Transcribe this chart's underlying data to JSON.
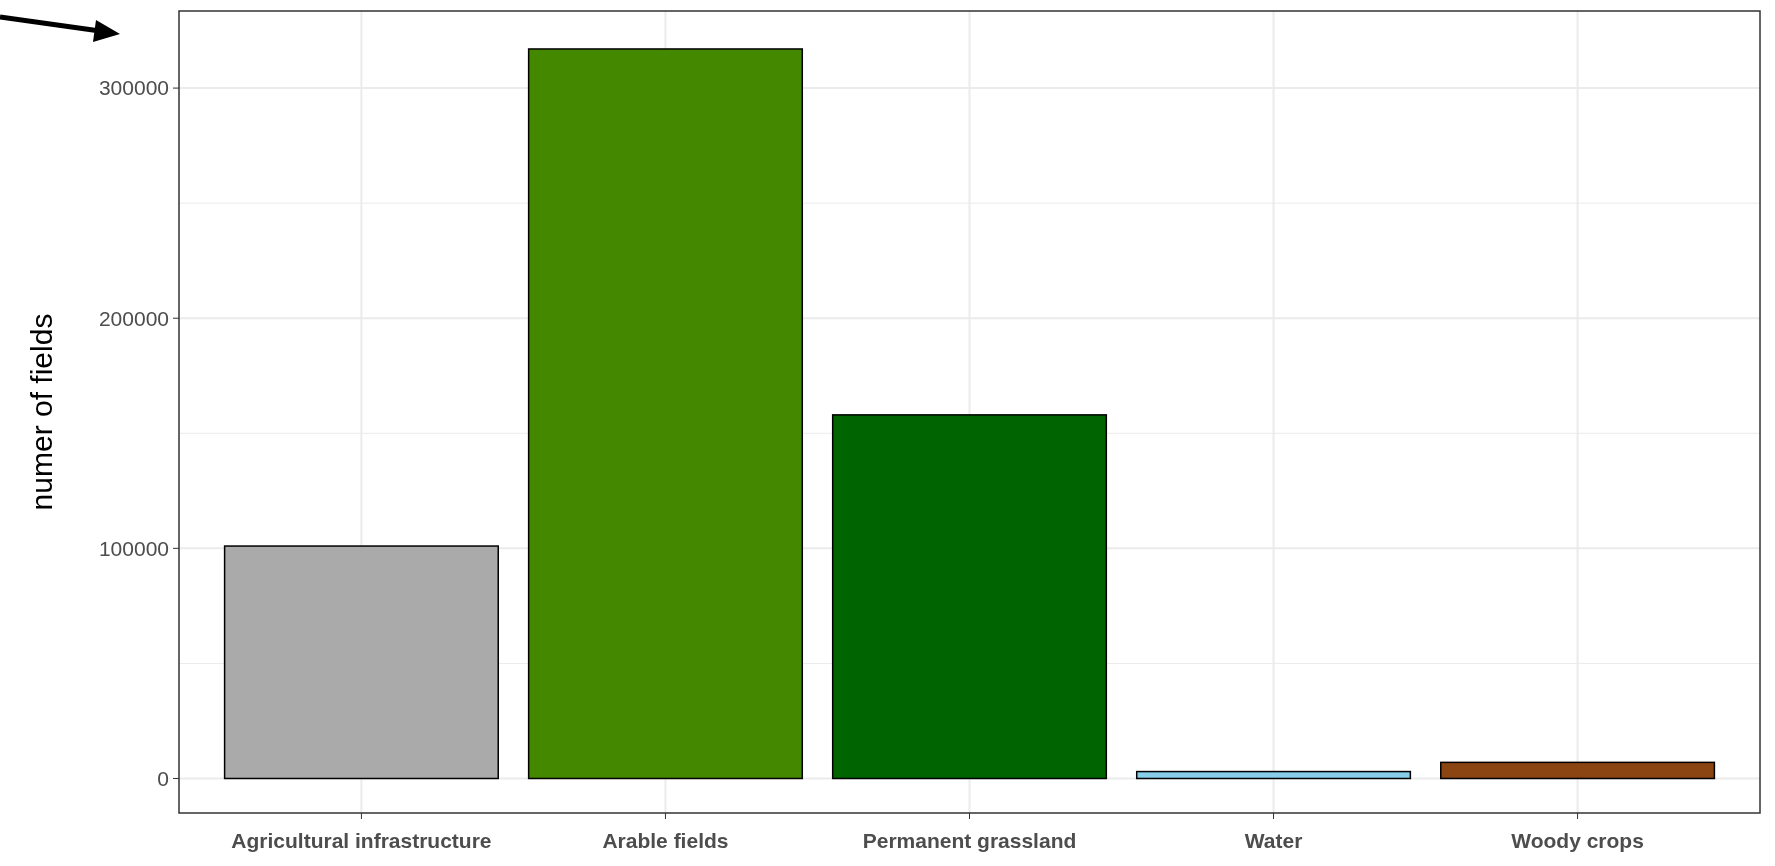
{
  "chart_data": {
    "type": "bar",
    "ylabel": "numer of fields",
    "categories": [
      "Agricultural infrastructure",
      "Arable fields",
      "Permanent grassland",
      "Water",
      "Woody crops"
    ],
    "values": [
      101000,
      317000,
      158000,
      3000,
      7000
    ],
    "colors": [
      "#aaaaaa",
      "#448800",
      "#006400",
      "#87ceeb",
      "#8b4513"
    ],
    "ylim": [
      -15000,
      333500
    ],
    "yticks": [
      0,
      {
        "value": 50000,
        "label": null
      },
      100000,
      {
        "value": 150000,
        "label": null
      },
      200000,
      {
        "value": 250000,
        "label": null
      },
      300000
    ],
    "grid": true
  }
}
